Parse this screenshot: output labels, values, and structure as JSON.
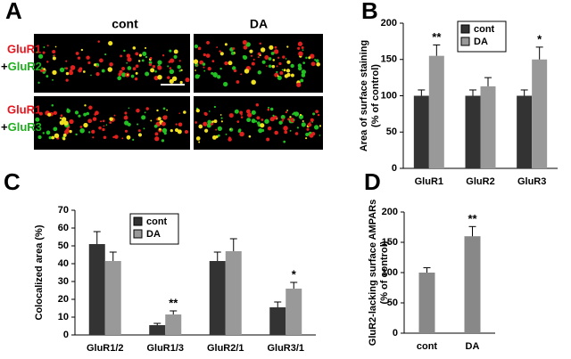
{
  "panel_a": {
    "letter": "A",
    "columns": [
      "cont",
      "DA"
    ],
    "rows": [
      [
        "GluR1",
        "+",
        "GluR2"
      ],
      [
        "GluR1",
        "+",
        "GluR3"
      ]
    ]
  },
  "chart_data": [
    {
      "type": "bar",
      "panel": "B",
      "ylabel": [
        "Area of surface staining",
        "(% of control)"
      ],
      "categories": [
        "GluR1",
        "GluR2",
        "GluR3"
      ],
      "series": [
        {
          "name": "cont",
          "color": "#333333",
          "values": [
            100,
            100,
            100
          ],
          "errors": [
            8,
            8,
            8
          ]
        },
        {
          "name": "DA",
          "color": "#999999",
          "values": [
            155,
            113,
            150
          ],
          "errors": [
            15,
            12,
            17
          ]
        }
      ],
      "annotations": [
        "**",
        null,
        "*"
      ],
      "ylim": [
        0,
        200
      ],
      "yticks": [
        0,
        50,
        100,
        150,
        200
      ]
    },
    {
      "type": "bar",
      "panel": "C",
      "ylabel": [
        "Colocalized area (%)"
      ],
      "categories": [
        "GluR1/2",
        "GluR1/3",
        "GluR2/1",
        "GluR3/1"
      ],
      "series": [
        {
          "name": "cont",
          "color": "#333333",
          "values": [
            51,
            5.5,
            41.5,
            15.5
          ],
          "errors": [
            7,
            1,
            5,
            3
          ]
        },
        {
          "name": "DA",
          "color": "#999999",
          "values": [
            41.5,
            11.5,
            47,
            26
          ],
          "errors": [
            5,
            2,
            7,
            3.5
          ]
        }
      ],
      "annotations": [
        null,
        "**",
        null,
        "*"
      ],
      "ylim": [
        0,
        70
      ],
      "yticks": [
        0,
        10,
        20,
        30,
        40,
        50,
        60,
        70
      ]
    },
    {
      "type": "bar",
      "panel": "D",
      "ylabel": [
        "GluR2-lacking surface AMPARs",
        "(% of control)"
      ],
      "categories": [
        "cont",
        "DA"
      ],
      "values": [
        100,
        160
      ],
      "errors": [
        8,
        16
      ],
      "color": "#888888",
      "annotations": [
        null,
        "**"
      ],
      "ylim": [
        0,
        200
      ],
      "yticks": [
        0,
        50,
        100,
        150,
        200
      ]
    }
  ]
}
